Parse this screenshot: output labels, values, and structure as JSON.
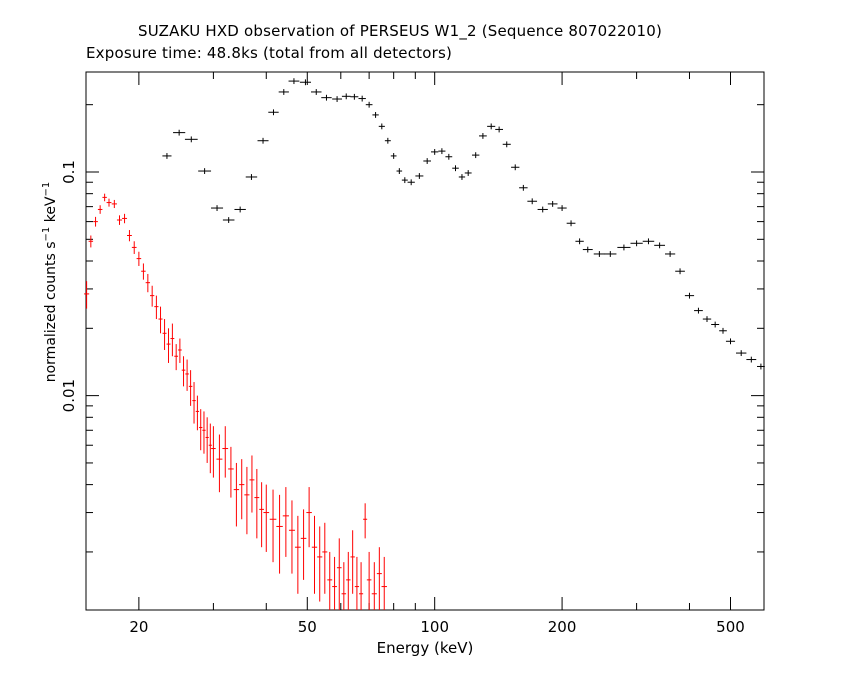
{
  "chart_data": {
    "type": "scatter",
    "title": "SUZAKU HXD observation of PERSEUS W1_2 (Sequence 807022010)",
    "subtitle": "Exposure time: 48.8ks (total from all detectors)",
    "xlabel": "Energy (keV)",
    "ylabel": {
      "base": "normalized counts s",
      "exp1": "−1",
      "mid": " keV",
      "exp2": "−1"
    },
    "xscale": "log",
    "yscale": "log",
    "xlim": [
      15,
      600
    ],
    "ylim": [
      0.0011,
      0.28
    ],
    "x_ticks": [
      20,
      50,
      100,
      200,
      500
    ],
    "x_tick_labels": [
      "20",
      "50",
      "100",
      "200",
      "500"
    ],
    "y_ticks": [
      0.01,
      0.1
    ],
    "y_tick_labels": [
      "0.01",
      "0.1"
    ],
    "grid": false,
    "series": [
      {
        "color": "#ff0000",
        "points": [
          [
            15.05,
            0.0285,
            0.004
          ],
          [
            15.4,
            0.049,
            0.003
          ],
          [
            15.8,
            0.06,
            0.003
          ],
          [
            16.2,
            0.068,
            0.003
          ],
          [
            16.6,
            0.077,
            0.003
          ],
          [
            17.0,
            0.073,
            0.003
          ],
          [
            17.5,
            0.072,
            0.003
          ],
          [
            18.0,
            0.061,
            0.003
          ],
          [
            18.5,
            0.062,
            0.003
          ],
          [
            19.0,
            0.052,
            0.003
          ],
          [
            19.5,
            0.046,
            0.003
          ],
          [
            20.0,
            0.041,
            0.003
          ],
          [
            20.5,
            0.036,
            0.003
          ],
          [
            21.0,
            0.032,
            0.003
          ],
          [
            21.5,
            0.028,
            0.003
          ],
          [
            22.0,
            0.025,
            0.003
          ],
          [
            22.5,
            0.022,
            0.003
          ],
          [
            23.0,
            0.019,
            0.003
          ],
          [
            23.5,
            0.017,
            0.003
          ],
          [
            24.0,
            0.018,
            0.003
          ],
          [
            24.5,
            0.015,
            0.002
          ],
          [
            25.0,
            0.016,
            0.002
          ],
          [
            25.5,
            0.013,
            0.002
          ],
          [
            26.0,
            0.0125,
            0.002
          ],
          [
            26.5,
            0.011,
            0.002
          ],
          [
            27.0,
            0.0095,
            0.002
          ],
          [
            27.5,
            0.0085,
            0.0015
          ],
          [
            28.0,
            0.0072,
            0.0015
          ],
          [
            28.5,
            0.007,
            0.0015
          ],
          [
            29.0,
            0.0065,
            0.0015
          ],
          [
            29.5,
            0.006,
            0.0015
          ],
          [
            30.0,
            0.0058,
            0.0015
          ],
          [
            31.0,
            0.0052,
            0.0015
          ],
          [
            32.0,
            0.0058,
            0.0015
          ],
          [
            33.0,
            0.0047,
            0.0012
          ],
          [
            34.0,
            0.0038,
            0.0012
          ],
          [
            35.0,
            0.004,
            0.0012
          ],
          [
            36.0,
            0.0036,
            0.0012
          ],
          [
            37.0,
            0.0042,
            0.0012
          ],
          [
            38.0,
            0.0035,
            0.0012
          ],
          [
            39.0,
            0.0031,
            0.001
          ],
          [
            40.0,
            0.003,
            0.001
          ],
          [
            41.5,
            0.0028,
            0.001
          ],
          [
            43.0,
            0.0026,
            0.001
          ],
          [
            44.5,
            0.0029,
            0.001
          ],
          [
            46.0,
            0.0025,
            0.0009
          ],
          [
            47.5,
            0.0021,
            0.0008
          ],
          [
            49.0,
            0.0023,
            0.0008
          ],
          [
            50.5,
            0.003,
            0.0009
          ],
          [
            52.0,
            0.0021,
            0.0008
          ],
          [
            53.5,
            0.0019,
            0.0007
          ],
          [
            55.0,
            0.002,
            0.0007
          ],
          [
            56.5,
            0.0015,
            0.0005
          ],
          [
            58.0,
            0.0014,
            0.0005
          ],
          [
            59.5,
            0.0017,
            0.0006
          ],
          [
            61.0,
            0.0013,
            0.0005
          ],
          [
            62.5,
            0.0015,
            0.0005
          ],
          [
            64.0,
            0.0019,
            0.0006
          ],
          [
            65.5,
            0.0014,
            0.0005
          ],
          [
            67.0,
            0.0013,
            0.0005
          ],
          [
            68.5,
            0.0028,
            0.0005
          ],
          [
            70.0,
            0.0015,
            0.0005
          ],
          [
            72.0,
            0.0013,
            0.0005
          ],
          [
            74.0,
            0.0016,
            0.0005
          ],
          [
            76.0,
            0.0014,
            0.0005
          ]
        ]
      },
      {
        "color": "#000000",
        "points": [
          [
            23.3,
            0.118
          ],
          [
            24.9,
            0.15
          ],
          [
            26.6,
            0.14
          ],
          [
            28.6,
            0.101
          ],
          [
            30.6,
            0.069
          ],
          [
            32.6,
            0.061
          ],
          [
            34.7,
            0.068
          ],
          [
            36.9,
            0.095
          ],
          [
            39.3,
            0.138
          ],
          [
            41.6,
            0.185
          ],
          [
            44.0,
            0.228
          ],
          [
            46.5,
            0.255
          ],
          [
            49.5,
            0.252
          ],
          [
            52.5,
            0.228
          ],
          [
            55.5,
            0.215
          ],
          [
            58.8,
            0.212
          ],
          [
            61.8,
            0.218
          ],
          [
            64.6,
            0.217
          ],
          [
            67.4,
            0.213
          ],
          [
            70.0,
            0.2
          ],
          [
            72.5,
            0.18
          ],
          [
            75.0,
            0.16
          ],
          [
            77.5,
            0.138
          ],
          [
            80.0,
            0.118
          ],
          [
            82.5,
            0.101
          ],
          [
            85.0,
            0.092
          ],
          [
            88.0,
            0.09
          ],
          [
            92.0,
            0.096
          ],
          [
            96.0,
            0.112
          ],
          [
            100.0,
            0.123
          ],
          [
            104.0,
            0.124
          ],
          [
            108.0,
            0.117
          ],
          [
            112.0,
            0.104
          ],
          [
            116.0,
            0.095
          ],
          [
            120.0,
            0.099
          ],
          [
            125.0,
            0.119
          ],
          [
            130.0,
            0.145
          ],
          [
            136.0,
            0.16
          ],
          [
            142.0,
            0.155
          ],
          [
            148.0,
            0.133
          ],
          [
            155.0,
            0.105
          ],
          [
            162.0,
            0.085
          ],
          [
            170.0,
            0.074
          ],
          [
            180.0,
            0.068
          ],
          [
            190.0,
            0.072
          ],
          [
            200.0,
            0.069
          ],
          [
            210.0,
            0.059
          ],
          [
            220.0,
            0.049
          ],
          [
            230.0,
            0.045
          ],
          [
            245.0,
            0.043
          ],
          [
            260.0,
            0.043
          ],
          [
            280.0,
            0.046
          ],
          [
            300.0,
            0.048
          ],
          [
            320.0,
            0.049
          ],
          [
            340.0,
            0.047
          ],
          [
            360.0,
            0.043
          ],
          [
            380.0,
            0.036
          ],
          [
            400.0,
            0.028
          ],
          [
            420.0,
            0.024
          ],
          [
            440.0,
            0.022
          ],
          [
            460.0,
            0.0208
          ],
          [
            480.0,
            0.0195
          ],
          [
            500.0,
            0.0175
          ],
          [
            530.0,
            0.0155
          ],
          [
            560.0,
            0.0145
          ],
          [
            590.0,
            0.0135
          ]
        ]
      }
    ]
  }
}
